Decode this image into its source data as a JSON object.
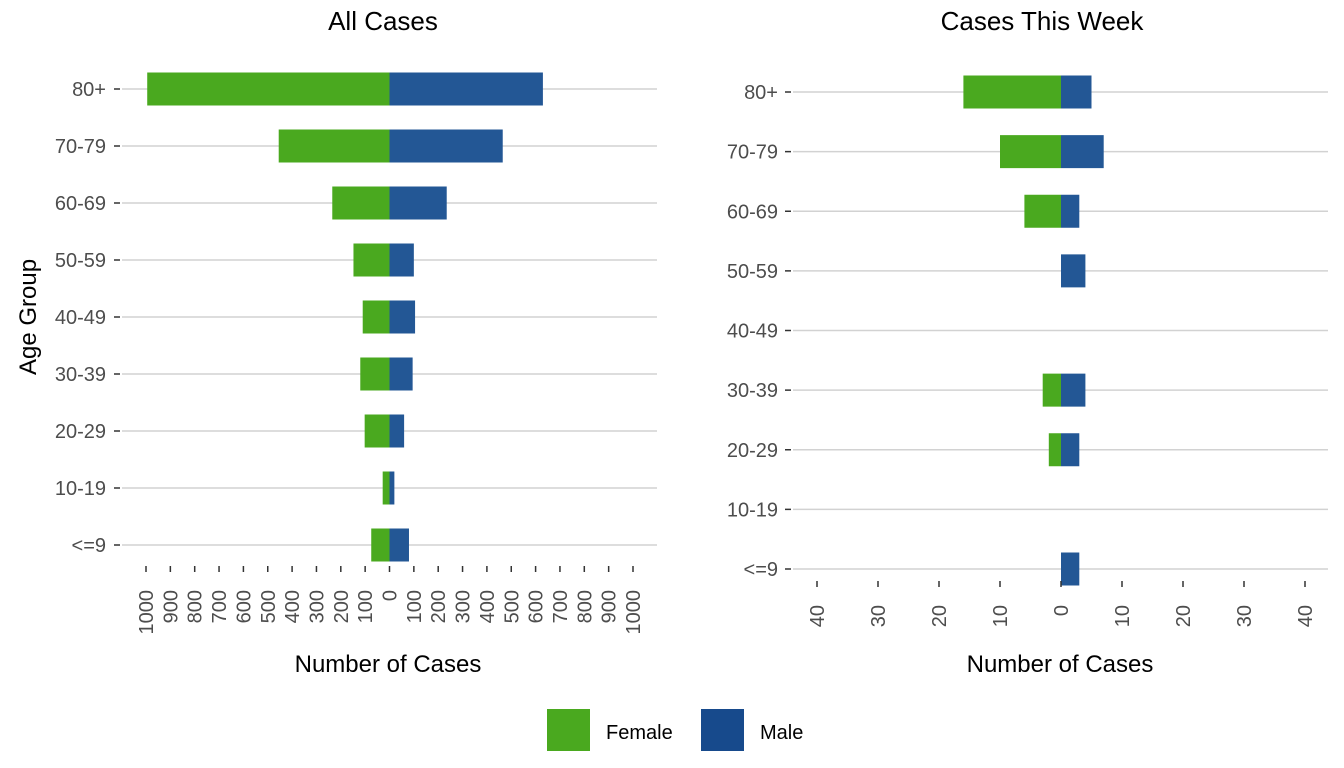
{
  "chart_data": [
    {
      "type": "bar",
      "orientation": "horizontal-diverging",
      "title": "All Cases",
      "xlabel": "Number of Cases",
      "ylabel": "Age Group",
      "categories": [
        "<=9",
        "10-19",
        "20-29",
        "30-39",
        "40-49",
        "50-59",
        "60-69",
        "70-79",
        "80+"
      ],
      "series": [
        {
          "name": "Female",
          "values": [
            75,
            28,
            102,
            120,
            110,
            148,
            235,
            455,
            995
          ]
        },
        {
          "name": "Male",
          "values": [
            80,
            20,
            60,
            95,
            105,
            100,
            235,
            465,
            630
          ]
        }
      ],
      "xlim": [
        -1000,
        1000
      ],
      "xticks": [
        "1000",
        "900",
        "800",
        "700",
        "600",
        "500",
        "400",
        "300",
        "200",
        "100",
        "0",
        "100",
        "200",
        "300",
        "400",
        "500",
        "600",
        "700",
        "800",
        "900",
        "1000"
      ],
      "grid": true
    },
    {
      "type": "bar",
      "orientation": "horizontal-diverging",
      "title": "Cases This Week",
      "xlabel": "Number of Cases",
      "ylabel": "",
      "categories": [
        "<=9",
        "10-19",
        "20-29",
        "30-39",
        "40-49",
        "50-59",
        "60-69",
        "70-79",
        "80+"
      ],
      "series": [
        {
          "name": "Female",
          "values": [
            0,
            0,
            2,
            3,
            0,
            0,
            6,
            10,
            16
          ]
        },
        {
          "name": "Male",
          "values": [
            3,
            0,
            3,
            4,
            0,
            4,
            3,
            7,
            5
          ]
        }
      ],
      "xlim": [
        -40,
        40
      ],
      "xticks": [
        "40",
        "30",
        "20",
        "10",
        "0",
        "10",
        "20",
        "30",
        "40"
      ],
      "grid": true
    }
  ],
  "legend": {
    "position": "bottom",
    "items": [
      {
        "label": "Female",
        "color": "#4aa91f"
      },
      {
        "label": "Male",
        "color": "#174a8c"
      }
    ]
  },
  "colors": {
    "female_bar": "#4aa91f",
    "male_bar": "#235795"
  }
}
